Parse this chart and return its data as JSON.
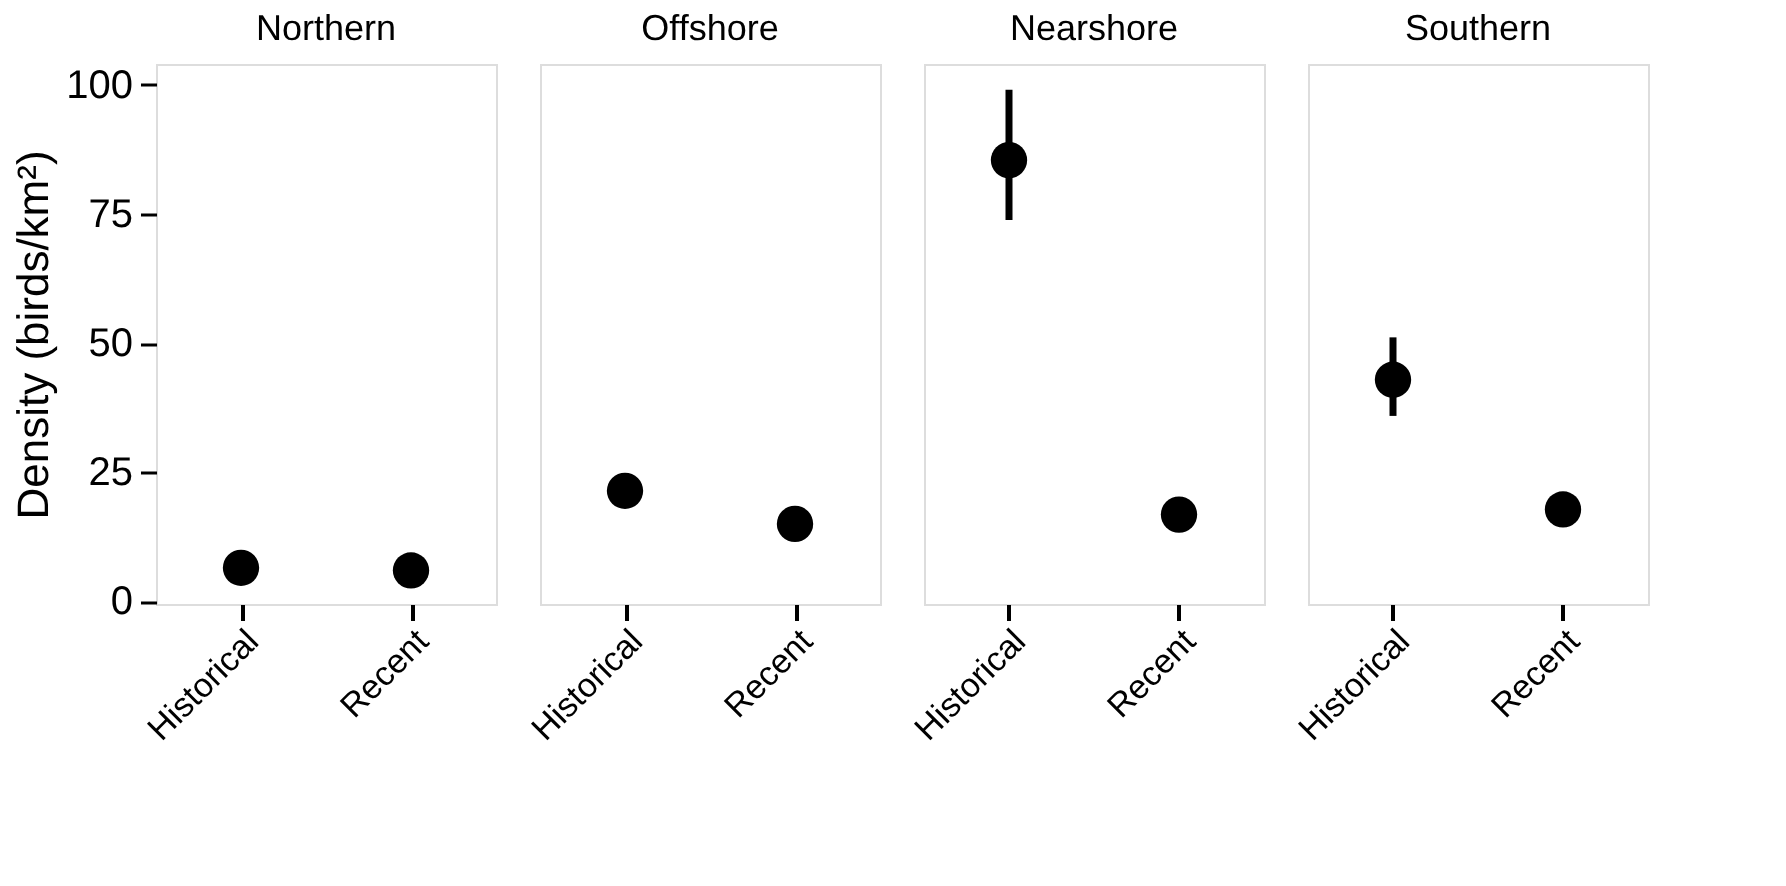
{
  "chart_data": [
    {
      "type": "scatter",
      "title": "Northern",
      "ylabel": "Density (birds/km²)",
      "categories": [
        "Historical",
        "Recent"
      ],
      "values": [
        6.5,
        6.0
      ],
      "errors": [
        null,
        null
      ],
      "color": "#000000",
      "marker": "circle",
      "ylim": [
        -0.5,
        104
      ],
      "yticks": [
        0,
        25,
        50,
        75,
        100
      ],
      "grid": false
    },
    {
      "type": "scatter",
      "title": "Offshore",
      "categories": [
        "Historical",
        "Recent"
      ],
      "values": [
        21.4,
        15.0
      ],
      "errors": [
        null,
        null
      ],
      "color": "#000000",
      "marker": "circle",
      "ylim": [
        -0.5,
        104
      ],
      "tick_labels": "x",
      "grid": false
    },
    {
      "type": "scatter",
      "title": "Nearshore",
      "categories": [
        "Historical",
        "Recent"
      ],
      "values": [
        85.4,
        16.8
      ],
      "errors": [
        [
          73.8,
          99.0
        ],
        null
      ],
      "color": "#000000",
      "marker": "circle",
      "ylim": [
        -0.5,
        104
      ],
      "tick_labels": "x",
      "grid": false
    },
    {
      "type": "scatter",
      "title": "Southern",
      "categories": [
        "Historical",
        "Recent"
      ],
      "values": [
        42.9,
        17.8
      ],
      "errors": [
        [
          35.9,
          51.1
        ],
        null
      ],
      "color": "#000000",
      "marker": "circle",
      "ylim": [
        -0.5,
        104
      ],
      "tick_labels": "x",
      "grid": false
    }
  ]
}
